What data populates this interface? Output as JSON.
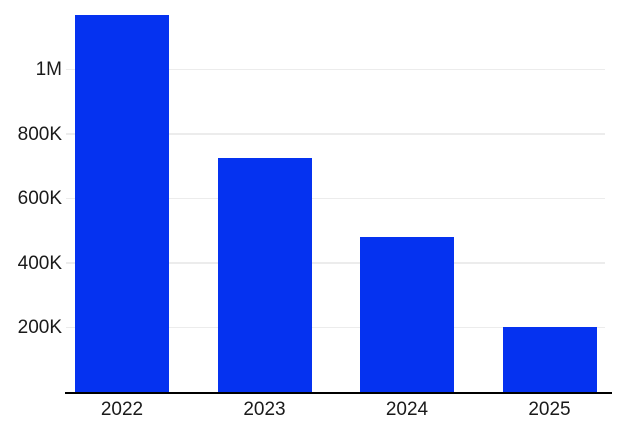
{
  "chart_data": {
    "type": "bar",
    "title": "",
    "xlabel": "",
    "ylabel": "",
    "categories": [
      "2022",
      "2023",
      "2024",
      "2025"
    ],
    "values": [
      1170000,
      727000,
      480000,
      202000
    ],
    "y_ticks": [
      {
        "label": "200K",
        "value": 200000
      },
      {
        "label": "400K",
        "value": 400000
      },
      {
        "label": "600K",
        "value": 600000
      },
      {
        "label": "800K",
        "value": 800000
      },
      {
        "label": "1M",
        "value": 1000000
      }
    ],
    "ylim": [
      0,
      1215000
    ],
    "grid": "horizontal",
    "legend": "none",
    "colors": {
      "bar": "#0532f0",
      "gridline": "#ececec",
      "axis_line": "#000000",
      "tick_text": "#1a1a1a",
      "background": "#ffffff"
    }
  }
}
